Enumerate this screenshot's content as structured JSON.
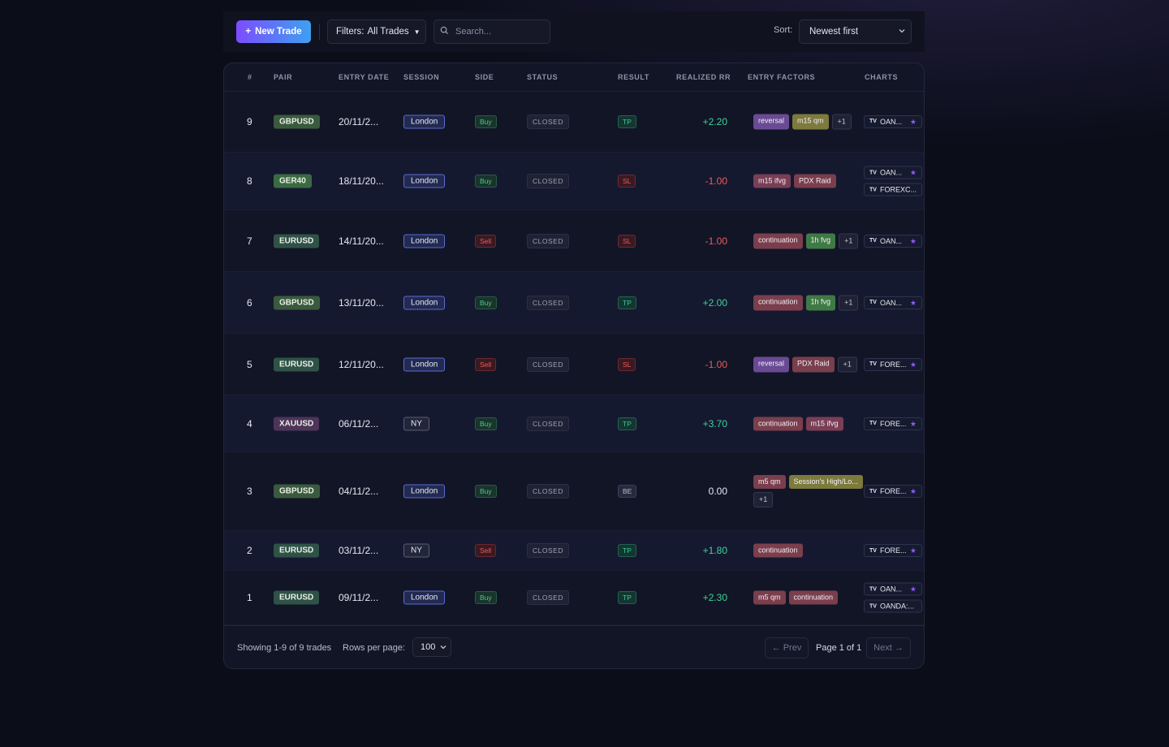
{
  "toolbar": {
    "new_trade_label": "New Trade",
    "filters_label": "Filters:",
    "filters_value": "All Trades",
    "search_placeholder": "Search...",
    "sort_label": "Sort:",
    "sort_value": "Newest first"
  },
  "colors": {
    "accent_gradient_start": "#7c4dff",
    "accent_gradient_end": "#3ea0f0",
    "positive": "#3fd39a",
    "negative": "#ef5a5a",
    "background": "#0b0d19"
  },
  "table": {
    "columns": [
      "#",
      "PAIR",
      "ENTRY DATE",
      "SESSION",
      "SIDE",
      "STATUS",
      "RESULT",
      "REALIZED RR",
      "ENTRY FACTORS",
      "CHARTS"
    ],
    "rows": [
      {
        "num": "9",
        "pair": "GBPUSD",
        "date": "20/11/2...",
        "session": "London",
        "side": "Buy",
        "status": "CLOSED",
        "result": "TP",
        "rr": "+2.20",
        "factors": [
          {
            "label": "reversal",
            "kind": "reversal"
          },
          {
            "label": "m15 qm",
            "kind": "qm"
          },
          {
            "label": "+1",
            "kind": "more"
          }
        ],
        "charts": [
          {
            "label": "OAN...",
            "starred": true
          }
        ]
      },
      {
        "num": "8",
        "pair": "GER40",
        "date": "18/11/20...",
        "session": "London",
        "side": "Buy",
        "status": "CLOSED",
        "result": "SL",
        "rr": "-1.00",
        "factors": [
          {
            "label": "m15 ifvg",
            "kind": "ifvg"
          },
          {
            "label": "PDX Raid",
            "kind": "raid"
          }
        ],
        "charts": [
          {
            "label": "OAN...",
            "starred": true
          },
          {
            "label": "FOREXC...",
            "starred": false
          }
        ]
      },
      {
        "num": "7",
        "pair": "EURUSD",
        "date": "14/11/20...",
        "session": "London",
        "side": "Sell",
        "status": "CLOSED",
        "result": "SL",
        "rr": "-1.00",
        "factors": [
          {
            "label": "continuation",
            "kind": "cont"
          },
          {
            "label": "1h fvg",
            "kind": "fvg"
          },
          {
            "label": "+1",
            "kind": "more"
          }
        ],
        "charts": [
          {
            "label": "OAN...",
            "starred": true
          }
        ]
      },
      {
        "num": "6",
        "pair": "GBPUSD",
        "date": "13/11/20...",
        "session": "London",
        "side": "Buy",
        "status": "CLOSED",
        "result": "TP",
        "rr": "+2.00",
        "factors": [
          {
            "label": "continuation",
            "kind": "cont"
          },
          {
            "label": "1h fvg",
            "kind": "fvg"
          },
          {
            "label": "+1",
            "kind": "more"
          }
        ],
        "charts": [
          {
            "label": "OAN...",
            "starred": true
          }
        ]
      },
      {
        "num": "5",
        "pair": "EURUSD",
        "date": "12/11/20...",
        "session": "London",
        "side": "Sell",
        "status": "CLOSED",
        "result": "SL",
        "rr": "-1.00",
        "factors": [
          {
            "label": "reversal",
            "kind": "reversal"
          },
          {
            "label": "PDX Raid",
            "kind": "raid"
          },
          {
            "label": "+1",
            "kind": "more"
          }
        ],
        "charts": [
          {
            "label": "FORE...",
            "starred": true
          }
        ]
      },
      {
        "num": "4",
        "pair": "XAUUSD",
        "date": "06/11/2...",
        "session": "NY",
        "side": "Buy",
        "status": "CLOSED",
        "result": "TP",
        "rr": "+3.70",
        "factors": [
          {
            "label": "continuation",
            "kind": "cont"
          },
          {
            "label": "m15 ifvg",
            "kind": "ifvg"
          }
        ],
        "charts": [
          {
            "label": "FORE...",
            "starred": true
          }
        ]
      },
      {
        "num": "3",
        "pair": "GBPUSD",
        "date": "04/11/2...",
        "session": "London",
        "side": "Buy",
        "status": "CLOSED",
        "result": "BE",
        "rr": "0.00",
        "factors": [
          {
            "label": "m5 qm",
            "kind": "m5qm"
          },
          {
            "label": "Session's High/Lo...",
            "kind": "qm"
          },
          {
            "label": "+1",
            "kind": "more"
          }
        ],
        "charts": [
          {
            "label": "FORE...",
            "starred": true
          }
        ]
      },
      {
        "num": "2",
        "pair": "EURUSD",
        "date": "03/11/2...",
        "session": "NY",
        "side": "Sell",
        "status": "CLOSED",
        "result": "TP",
        "rr": "+1.80",
        "factors": [
          {
            "label": "continuation",
            "kind": "cont"
          }
        ],
        "charts": [
          {
            "label": "FORE...",
            "starred": true
          }
        ]
      },
      {
        "num": "1",
        "pair": "EURUSD",
        "date": "09/11/2...",
        "session": "London",
        "side": "Buy",
        "status": "CLOSED",
        "result": "TP",
        "rr": "+2.30",
        "factors": [
          {
            "label": "m5 qm",
            "kind": "m5qm"
          },
          {
            "label": "continuation",
            "kind": "cont"
          }
        ],
        "charts": [
          {
            "label": "OAN...",
            "starred": true
          },
          {
            "label": "OANDA:...",
            "starred": false
          }
        ]
      }
    ]
  },
  "footer": {
    "showing": "Showing 1-9 of 9 trades",
    "rows_per_page_label": "Rows per page:",
    "rows_per_page_value": "100",
    "prev_label": "← Prev",
    "page_info": "Page 1 of 1",
    "next_label": "Next →"
  }
}
